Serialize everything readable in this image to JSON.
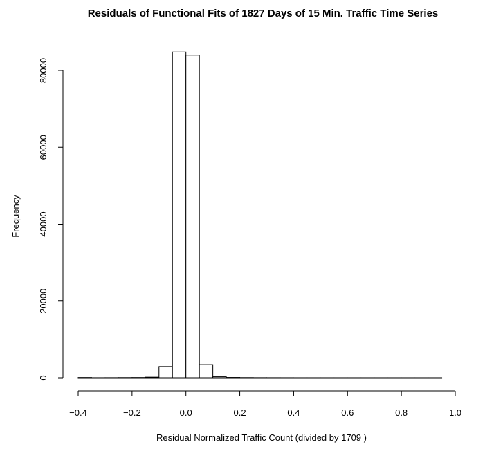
{
  "chart_data": {
    "type": "bar",
    "title": "Residuals of Functional Fits of 1827 Days of 15 Min. Traffic Time Series",
    "xlabel": "Residual Normalized Traffic Count (divided by 1709 )",
    "ylabel": "Frequency",
    "xlim": [
      -0.4,
      1.0
    ],
    "ylim": [
      0,
      85000
    ],
    "x_ticks": [
      "-0.4",
      "-0.2",
      "0.0",
      "0.2",
      "0.4",
      "0.6",
      "0.8",
      "1.0"
    ],
    "y_ticks": [
      "0",
      "20000",
      "40000",
      "60000",
      "80000"
    ],
    "bin_width": 0.05,
    "bin_starts": [
      -0.4,
      -0.35,
      -0.3,
      -0.25,
      -0.2,
      -0.15,
      -0.1,
      -0.05,
      0.0,
      0.05,
      0.1,
      0.15,
      0.2,
      0.25,
      0.3,
      0.35,
      0.4,
      0.45,
      0.5,
      0.55,
      0.6,
      0.65,
      0.7,
      0.75,
      0.8,
      0.85,
      0.9
    ],
    "values": [
      60,
      10,
      20,
      40,
      60,
      150,
      2900,
      84800,
      84000,
      3400,
      250,
      80,
      40,
      20,
      15,
      10,
      5,
      5,
      5,
      5,
      5,
      5,
      5,
      5,
      5,
      5,
      5
    ]
  }
}
